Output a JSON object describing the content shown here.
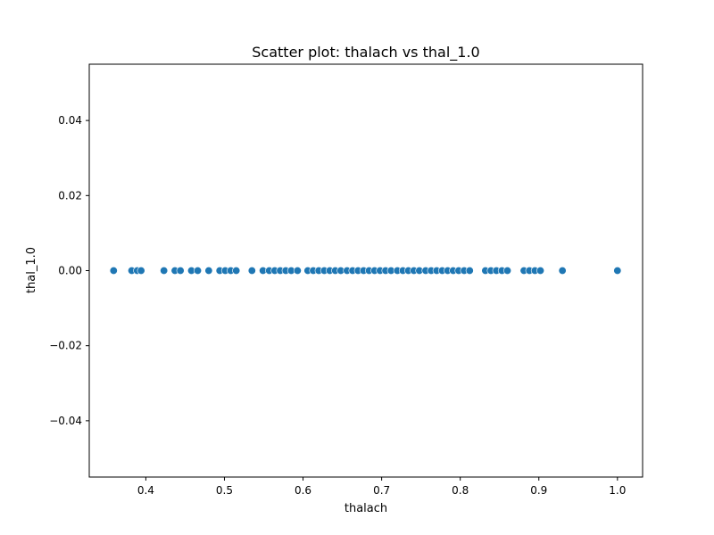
{
  "chart_data": {
    "type": "scatter",
    "title": "Scatter plot: thalach vs thal_1.0",
    "xlabel": "thalach",
    "ylabel": "thal_1.0",
    "xlim": [
      0.328,
      1.032
    ],
    "ylim": [
      -0.055,
      0.055
    ],
    "x_ticks": [
      0.4,
      0.5,
      0.6,
      0.7,
      0.8,
      0.9,
      1.0
    ],
    "x_tick_labels": [
      "0.4",
      "0.5",
      "0.6",
      "0.7",
      "0.8",
      "0.9",
      "1.0"
    ],
    "y_ticks": [
      -0.04,
      -0.02,
      0.0,
      0.02,
      0.04
    ],
    "y_tick_labels": [
      "−0.04",
      "−0.02",
      "0.00",
      "0.02",
      "0.04"
    ],
    "grid": false,
    "point_color": "#1f77b4",
    "point_edge_color": "#ffffff",
    "x": [
      0.359,
      0.382,
      0.389,
      0.394,
      0.423,
      0.437,
      0.444,
      0.458,
      0.466,
      0.48,
      0.494,
      0.501,
      0.508,
      0.515,
      0.535,
      0.549,
      0.557,
      0.564,
      0.571,
      0.578,
      0.585,
      0.593,
      0.606,
      0.613,
      0.62,
      0.627,
      0.634,
      0.641,
      0.648,
      0.656,
      0.663,
      0.67,
      0.677,
      0.684,
      0.691,
      0.698,
      0.705,
      0.712,
      0.72,
      0.727,
      0.734,
      0.741,
      0.748,
      0.756,
      0.763,
      0.77,
      0.777,
      0.784,
      0.791,
      0.798,
      0.805,
      0.812,
      0.832,
      0.839,
      0.846,
      0.853,
      0.86,
      0.881,
      0.888,
      0.895,
      0.902,
      0.93,
      1.0
    ],
    "y": [
      0,
      0,
      0,
      0,
      0,
      0,
      0,
      0,
      0,
      0,
      0,
      0,
      0,
      0,
      0,
      0,
      0,
      0,
      0,
      0,
      0,
      0,
      0,
      0,
      0,
      0,
      0,
      0,
      0,
      0,
      0,
      0,
      0,
      0,
      0,
      0,
      0,
      0,
      0,
      0,
      0,
      0,
      0,
      0,
      0,
      0,
      0,
      0,
      0,
      0,
      0,
      0,
      0,
      0,
      0,
      0,
      0,
      0,
      0,
      0,
      0,
      0,
      0
    ]
  }
}
